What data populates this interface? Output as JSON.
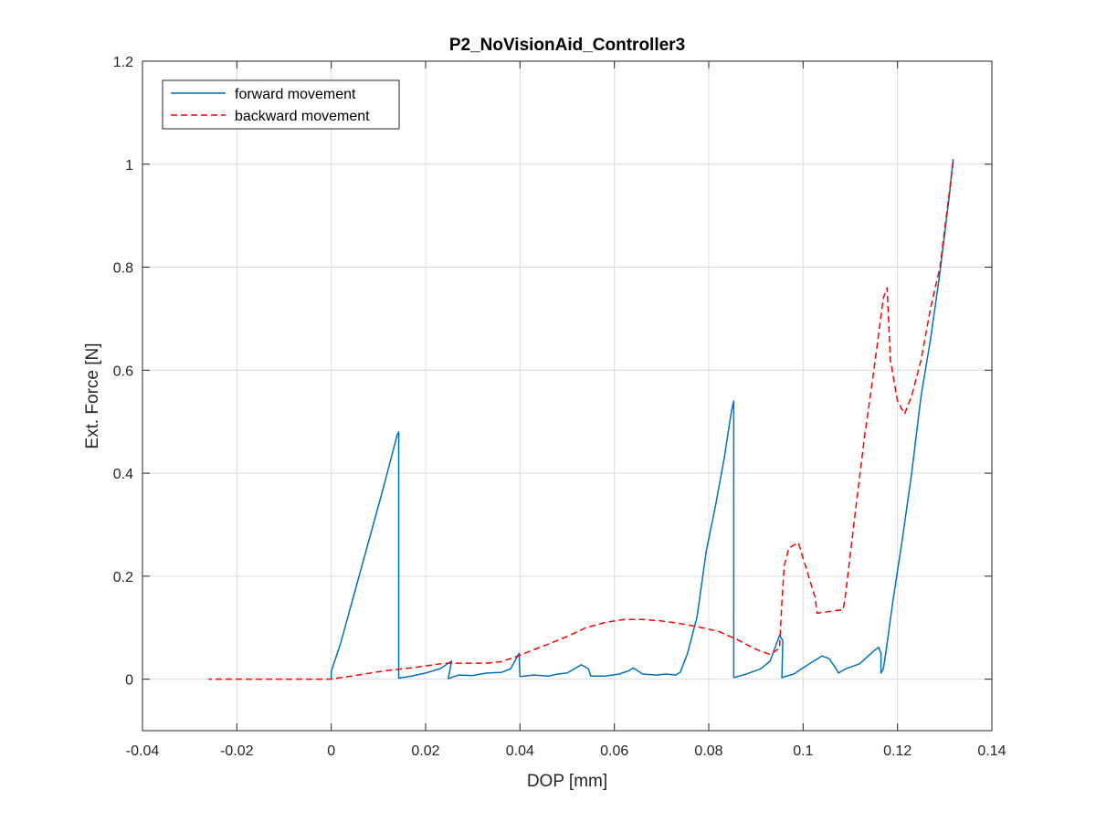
{
  "chart_data": {
    "type": "line",
    "title": "P2_NoVisionAid_Controller3",
    "xlabel": "DOP [mm]",
    "ylabel": "Ext. Force [N]",
    "xlim": [
      -0.04,
      0.14
    ],
    "ylim": [
      -0.1,
      1.2
    ],
    "xticks": [
      -0.04,
      -0.02,
      0,
      0.02,
      0.04,
      0.06,
      0.08,
      0.1,
      0.12,
      0.14
    ],
    "xtick_labels": [
      "-0.04",
      "-0.02",
      "0",
      "0.02",
      "0.04",
      "0.06",
      "0.08",
      "0.1",
      "0.12",
      "0.14"
    ],
    "yticks": [
      0,
      0.2,
      0.4,
      0.6,
      0.8,
      1,
      1.2
    ],
    "ytick_labels": [
      "0",
      "0.2",
      "0.4",
      "0.6",
      "0.8",
      "1",
      "1.2"
    ],
    "grid": true,
    "legend_position": "top-left",
    "series": [
      {
        "name": "forward movement",
        "color": "#0072BD",
        "style": "solid",
        "points": [
          [
            0.0,
            0.0
          ],
          [
            0.0,
            0.015
          ],
          [
            0.002,
            0.07
          ],
          [
            0.005,
            0.17
          ],
          [
            0.008,
            0.27
          ],
          [
            0.011,
            0.37
          ],
          [
            0.014,
            0.475
          ],
          [
            0.0143,
            0.48
          ],
          [
            0.0143,
            0.002
          ],
          [
            0.017,
            0.006
          ],
          [
            0.02,
            0.012
          ],
          [
            0.023,
            0.02
          ],
          [
            0.0255,
            0.035
          ],
          [
            0.0248,
            0.001
          ],
          [
            0.027,
            0.008
          ],
          [
            0.03,
            0.007
          ],
          [
            0.033,
            0.012
          ],
          [
            0.036,
            0.013
          ],
          [
            0.038,
            0.02
          ],
          [
            0.0398,
            0.05
          ],
          [
            0.04,
            0.005
          ],
          [
            0.043,
            0.008
          ],
          [
            0.046,
            0.006
          ],
          [
            0.048,
            0.01
          ],
          [
            0.05,
            0.012
          ],
          [
            0.053,
            0.028
          ],
          [
            0.0545,
            0.02
          ],
          [
            0.055,
            0.006
          ],
          [
            0.058,
            0.006
          ],
          [
            0.061,
            0.01
          ],
          [
            0.063,
            0.016
          ],
          [
            0.064,
            0.022
          ],
          [
            0.066,
            0.01
          ],
          [
            0.069,
            0.008
          ],
          [
            0.071,
            0.01
          ],
          [
            0.073,
            0.008
          ],
          [
            0.074,
            0.014
          ],
          [
            0.0755,
            0.05
          ],
          [
            0.0775,
            0.12
          ],
          [
            0.0795,
            0.25
          ],
          [
            0.0815,
            0.34
          ],
          [
            0.0833,
            0.43
          ],
          [
            0.0848,
            0.52
          ],
          [
            0.0853,
            0.54
          ],
          [
            0.0853,
            0.003
          ],
          [
            0.088,
            0.01
          ],
          [
            0.091,
            0.02
          ],
          [
            0.093,
            0.035
          ],
          [
            0.094,
            0.06
          ],
          [
            0.095,
            0.085
          ],
          [
            0.0957,
            0.075
          ],
          [
            0.0955,
            0.003
          ],
          [
            0.098,
            0.01
          ],
          [
            0.101,
            0.028
          ],
          [
            0.104,
            0.045
          ],
          [
            0.1055,
            0.04
          ],
          [
            0.107,
            0.02
          ],
          [
            0.1075,
            0.012
          ],
          [
            0.109,
            0.02
          ],
          [
            0.112,
            0.03
          ],
          [
            0.115,
            0.055
          ],
          [
            0.116,
            0.062
          ],
          [
            0.1165,
            0.05
          ],
          [
            0.1165,
            0.012
          ],
          [
            0.117,
            0.02
          ],
          [
            0.1175,
            0.05
          ],
          [
            0.119,
            0.15
          ],
          [
            0.121,
            0.27
          ],
          [
            0.123,
            0.4
          ],
          [
            0.125,
            0.55
          ],
          [
            0.127,
            0.66
          ],
          [
            0.129,
            0.79
          ],
          [
            0.131,
            0.94
          ],
          [
            0.1318,
            1.01
          ]
        ]
      },
      {
        "name": "backward movement",
        "color": "#FF0000",
        "style": "dashed",
        "points": [
          [
            0.1318,
            1.005
          ],
          [
            0.129,
            0.8
          ],
          [
            0.127,
            0.72
          ],
          [
            0.125,
            0.62
          ],
          [
            0.123,
            0.55
          ],
          [
            0.1215,
            0.515
          ],
          [
            0.12,
            0.54
          ],
          [
            0.1185,
            0.62
          ],
          [
            0.1178,
            0.76
          ],
          [
            0.117,
            0.74
          ],
          [
            0.115,
            0.6
          ],
          [
            0.113,
            0.47
          ],
          [
            0.111,
            0.32
          ],
          [
            0.109,
            0.165
          ],
          [
            0.1085,
            0.135
          ],
          [
            0.106,
            0.132
          ],
          [
            0.103,
            0.128
          ],
          [
            0.1025,
            0.16
          ],
          [
            0.1015,
            0.19
          ],
          [
            0.1,
            0.235
          ],
          [
            0.099,
            0.265
          ],
          [
            0.097,
            0.255
          ],
          [
            0.096,
            0.22
          ],
          [
            0.0955,
            0.15
          ],
          [
            0.095,
            0.06
          ],
          [
            0.093,
            0.048
          ],
          [
            0.09,
            0.058
          ],
          [
            0.086,
            0.077
          ],
          [
            0.082,
            0.093
          ],
          [
            0.078,
            0.101
          ],
          [
            0.074,
            0.108
          ],
          [
            0.07,
            0.113
          ],
          [
            0.066,
            0.116
          ],
          [
            0.062,
            0.116
          ],
          [
            0.058,
            0.11
          ],
          [
            0.054,
            0.1
          ],
          [
            0.05,
            0.083
          ],
          [
            0.046,
            0.068
          ],
          [
            0.042,
            0.054
          ],
          [
            0.039,
            0.043
          ],
          [
            0.036,
            0.034
          ],
          [
            0.033,
            0.031
          ],
          [
            0.03,
            0.031
          ],
          [
            0.027,
            0.031
          ],
          [
            0.024,
            0.031
          ],
          [
            0.021,
            0.027
          ],
          [
            0.017,
            0.022
          ],
          [
            0.013,
            0.018
          ],
          [
            0.009,
            0.013
          ],
          [
            0.005,
            0.007
          ],
          [
            0.002,
            0.003
          ],
          [
            0.0,
            0.0
          ],
          [
            -0.005,
            0.0
          ],
          [
            -0.01,
            0.0
          ],
          [
            -0.015,
            0.0
          ],
          [
            -0.02,
            0.0
          ],
          [
            -0.026,
            0.0
          ]
        ]
      }
    ]
  }
}
